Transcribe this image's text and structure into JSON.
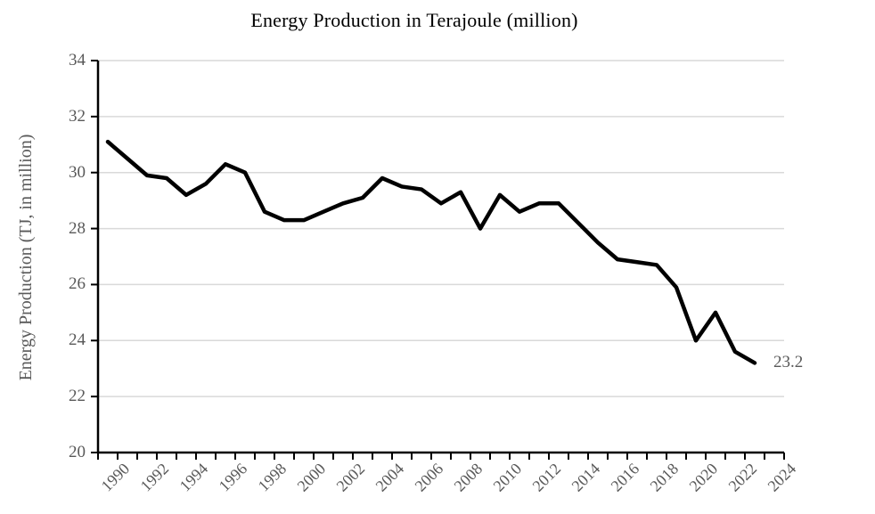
{
  "chart_data": {
    "type": "line",
    "title": "Energy Production in Terajoule (million)",
    "xlabel": "",
    "ylabel": "Energy Production (TJ, in million)",
    "ylim": [
      20,
      34
    ],
    "y_ticks": [
      20,
      22,
      24,
      26,
      28,
      30,
      32,
      34
    ],
    "x_axis_range": [
      1990,
      2024
    ],
    "x_tick_labels": [
      "1990",
      "1992",
      "1994",
      "1996",
      "1998",
      "2000",
      "2002",
      "2004",
      "2006",
      "2008",
      "2010",
      "2012",
      "2014",
      "2016",
      "2018",
      "2020",
      "2022",
      "2024"
    ],
    "grid": "horizontal-major",
    "legend_position": "none",
    "series": [
      {
        "name": "Energy Production",
        "x": [
          1990,
          1991,
          1992,
          1993,
          1994,
          1995,
          1996,
          1997,
          1998,
          1999,
          2000,
          2001,
          2002,
          2003,
          2004,
          2005,
          2006,
          2007,
          2008,
          2009,
          2010,
          2011,
          2012,
          2013,
          2014,
          2015,
          2016,
          2017,
          2018,
          2019,
          2020,
          2021,
          2022,
          2023
        ],
        "values": [
          31.1,
          30.5,
          29.9,
          29.8,
          29.2,
          29.6,
          30.3,
          30.0,
          28.6,
          28.3,
          28.3,
          28.6,
          28.9,
          29.1,
          29.8,
          29.5,
          29.4,
          28.9,
          29.3,
          28.0,
          29.2,
          28.6,
          28.9,
          28.9,
          28.2,
          27.5,
          26.9,
          26.8,
          26.7,
          25.9,
          24.0,
          25.0,
          23.6,
          23.2
        ],
        "last_point_label": "23.2"
      }
    ]
  },
  "colors": {
    "line": "#000000",
    "axis": "#000000",
    "gridline": "#d9d9d9",
    "tick_label": "#595959",
    "title_text": "#000000",
    "data_label": "#595959",
    "background": "#ffffff"
  }
}
